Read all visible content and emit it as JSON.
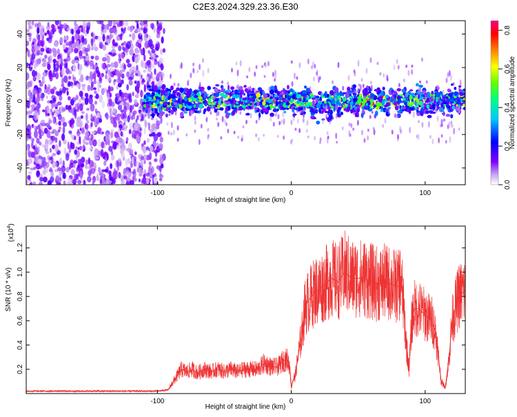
{
  "title": "C2E3.2024.329.23.36.E30",
  "chart_data": [
    {
      "type": "heatmap",
      "xlabel": "Height of straight line (km)",
      "ylabel": "Frequency (Hz)",
      "xlim": [
        -198,
        130
      ],
      "ylim": [
        -50,
        48
      ],
      "xticks": [
        -100,
        0,
        100
      ],
      "xtick_labels": [
        "-100",
        "0",
        "100"
      ],
      "yticks": [
        -40,
        -20,
        0,
        20,
        40
      ],
      "ytick_labels": [
        "-40",
        "-20",
        "0",
        "20",
        "40"
      ],
      "colorbar": {
        "label": "Normalized spectral amplitude",
        "range": [
          0.0,
          0.85
        ],
        "ticks": [
          0.0,
          0.2,
          0.4,
          0.6,
          0.8
        ],
        "tick_labels": [
          "0.0",
          "0.2",
          "0.4",
          "0.6",
          "0.8"
        ],
        "colors": [
          "#ffffff",
          "#8000ff",
          "#0000ff",
          "#00c0ff",
          "#00ff80",
          "#80ff00",
          "#ffff00",
          "#ff8000",
          "#ff0000",
          "#ff0080"
        ]
      },
      "regions": [
        {
          "x_range": [
            -198,
            -95
          ],
          "freq_range": [
            -50,
            48
          ],
          "amplitude": "low, broadband noise"
        },
        {
          "x_range": [
            -95,
            130
          ],
          "freq_range": [
            -10,
            10
          ],
          "amplitude": "concentrated band around 0 Hz, peaks up to ~0.85 near x=60"
        }
      ],
      "grid": false
    },
    {
      "type": "line",
      "xlabel": "Height of straight line (km)",
      "ylabel": "SNR (10 * v/v)",
      "yscale_label": "(x10",
      "yscale_exp": "4",
      "yscale_close": ")",
      "xlim": [
        -198,
        130
      ],
      "ylim": [
        0,
        1.38
      ],
      "xticks": [
        -100,
        0,
        100
      ],
      "xtick_labels": [
        "-100",
        "0",
        "100"
      ],
      "yticks": [
        0.2,
        0.4,
        0.6,
        0.8,
        1.0,
        1.2
      ],
      "ytick_labels": [
        "0.2",
        "0.4",
        "0.6",
        "0.8",
        "1.0",
        "1.2"
      ],
      "series": [
        {
          "color": "#ee3333",
          "x": [
            -198,
            -180,
            -160,
            -140,
            -120,
            -100,
            -92,
            -88,
            -85,
            -82,
            -78,
            -74,
            -70,
            -65,
            -60,
            -55,
            -50,
            -45,
            -40,
            -35,
            -30,
            -25,
            -20,
            -15,
            -10,
            -6,
            -3,
            -1,
            0,
            1,
            3,
            5,
            8,
            10,
            12,
            15,
            18,
            20,
            25,
            30,
            35,
            40,
            45,
            50,
            55,
            60,
            65,
            70,
            75,
            80,
            82,
            84,
            86,
            88,
            90,
            92,
            95,
            100,
            105,
            108,
            110,
            112,
            115,
            118,
            120,
            125,
            130
          ],
          "y": [
            0.02,
            0.02,
            0.02,
            0.02,
            0.02,
            0.02,
            0.03,
            0.1,
            0.15,
            0.2,
            0.18,
            0.2,
            0.17,
            0.2,
            0.18,
            0.2,
            0.18,
            0.2,
            0.18,
            0.2,
            0.2,
            0.2,
            0.25,
            0.22,
            0.22,
            0.27,
            0.28,
            0.22,
            0.05,
            0.1,
            0.15,
            0.3,
            0.5,
            0.7,
            0.75,
            0.8,
            0.85,
            0.85,
            0.9,
            0.95,
            0.92,
            1.0,
            0.95,
            0.95,
            0.95,
            0.92,
            0.9,
            0.92,
            0.9,
            0.88,
            0.95,
            0.7,
            0.4,
            0.2,
            0.6,
            0.7,
            0.7,
            0.65,
            0.6,
            0.5,
            0.3,
            0.1,
            0.05,
            0.3,
            0.6,
            0.8,
            0.85
          ]
        }
      ],
      "grid": false
    }
  ]
}
